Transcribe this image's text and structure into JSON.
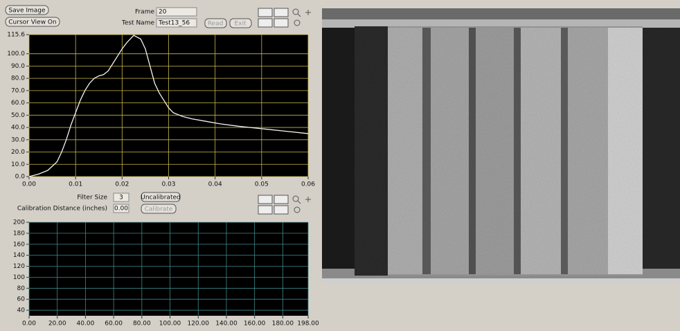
{
  "buttons": {
    "save_image": "Save Image",
    "cursor_view": "Cursor View On",
    "read": "Read",
    "exit": "Exit",
    "uncalibrated": "Uncalibrated",
    "calibrate": "Calibrate"
  },
  "fields": {
    "frame_label": "Frame",
    "frame_value": "20",
    "test_name_label": "Test Name",
    "test_name_value": "Test13_56",
    "filter_size_label": "Filter Size",
    "filter_size_value": "3",
    "calibration_label": "Calibration Distance (inches)",
    "calibration_value": "0.00"
  },
  "chart_data": [
    {
      "type": "line",
      "x": [
        0,
        0.002,
        0.004,
        0.006,
        0.007,
        0.008,
        0.009,
        0.01,
        0.011,
        0.012,
        0.013,
        0.014,
        0.015,
        0.016,
        0.017,
        0.018,
        0.019,
        0.02,
        0.021,
        0.022,
        0.0225,
        0.023,
        0.024,
        0.025,
        0.026,
        0.027,
        0.028,
        0.029,
        0.03,
        0.031,
        0.033,
        0.035,
        0.038,
        0.041,
        0.045,
        0.05,
        0.055,
        0.06
      ],
      "series": [
        {
          "color": "#f4f4f4",
          "values": [
            0,
            2,
            5,
            12,
            20,
            30,
            42,
            52,
            62,
            70,
            76,
            80,
            82,
            83,
            86,
            92,
            98,
            104,
            109,
            113,
            115,
            114,
            112,
            104,
            90,
            76,
            68,
            62,
            56,
            52,
            49,
            47,
            45,
            43,
            41,
            39,
            37,
            35
          ]
        }
      ],
      "xlim": [
        0,
        0.06
      ],
      "xticks": [
        {
          "value": 0,
          "label": "0.00"
        },
        {
          "value": 0.01,
          "label": "0.01"
        },
        {
          "value": 0.02,
          "label": "0.02"
        },
        {
          "value": 0.03,
          "label": "0.03"
        },
        {
          "value": 0.04,
          "label": "0.04"
        },
        {
          "value": 0.05,
          "label": "0.05"
        },
        {
          "value": 0.06,
          "label": "0.06"
        }
      ],
      "ylim": [
        0,
        115.6
      ],
      "yticks": [
        {
          "value": 0,
          "label": "0.0"
        },
        {
          "value": 10,
          "label": "10.0"
        },
        {
          "value": 20,
          "label": "20.0"
        },
        {
          "value": 30,
          "label": "30.0"
        },
        {
          "value": 40,
          "label": "40.0"
        },
        {
          "value": 50,
          "label": "50.0"
        },
        {
          "value": 60,
          "label": "60.0"
        },
        {
          "value": 70,
          "label": "70.0"
        },
        {
          "value": 80,
          "label": "80.0"
        },
        {
          "value": 90,
          "label": "90.0"
        },
        {
          "value": 100,
          "label": "100.0"
        },
        115.6
      ],
      "grid": true,
      "grid_color": "#c8b84a"
    },
    {
      "type": "line",
      "series": [],
      "xlim": [
        0,
        198
      ],
      "xticks": [
        {
          "value": 0,
          "label": "0.00"
        },
        {
          "value": 20,
          "label": "20.00"
        },
        {
          "value": 40,
          "label": "40.00"
        },
        {
          "value": 60,
          "label": "60.00"
        },
        {
          "value": 80,
          "label": "80.00"
        },
        {
          "value": 100,
          "label": "100.00"
        },
        {
          "value": 120,
          "label": "120.00"
        },
        {
          "value": 140,
          "label": "140.00"
        },
        {
          "value": 160,
          "label": "160.00"
        },
        {
          "value": 180,
          "label": "180.00"
        },
        {
          "value": 198,
          "label": "198.00"
        }
      ],
      "ylim": [
        30,
        200
      ],
      "yticks": [
        40,
        60,
        80,
        100,
        120,
        140,
        160,
        180,
        200
      ],
      "grid": true,
      "grid_color": "#3f8a8a"
    }
  ]
}
